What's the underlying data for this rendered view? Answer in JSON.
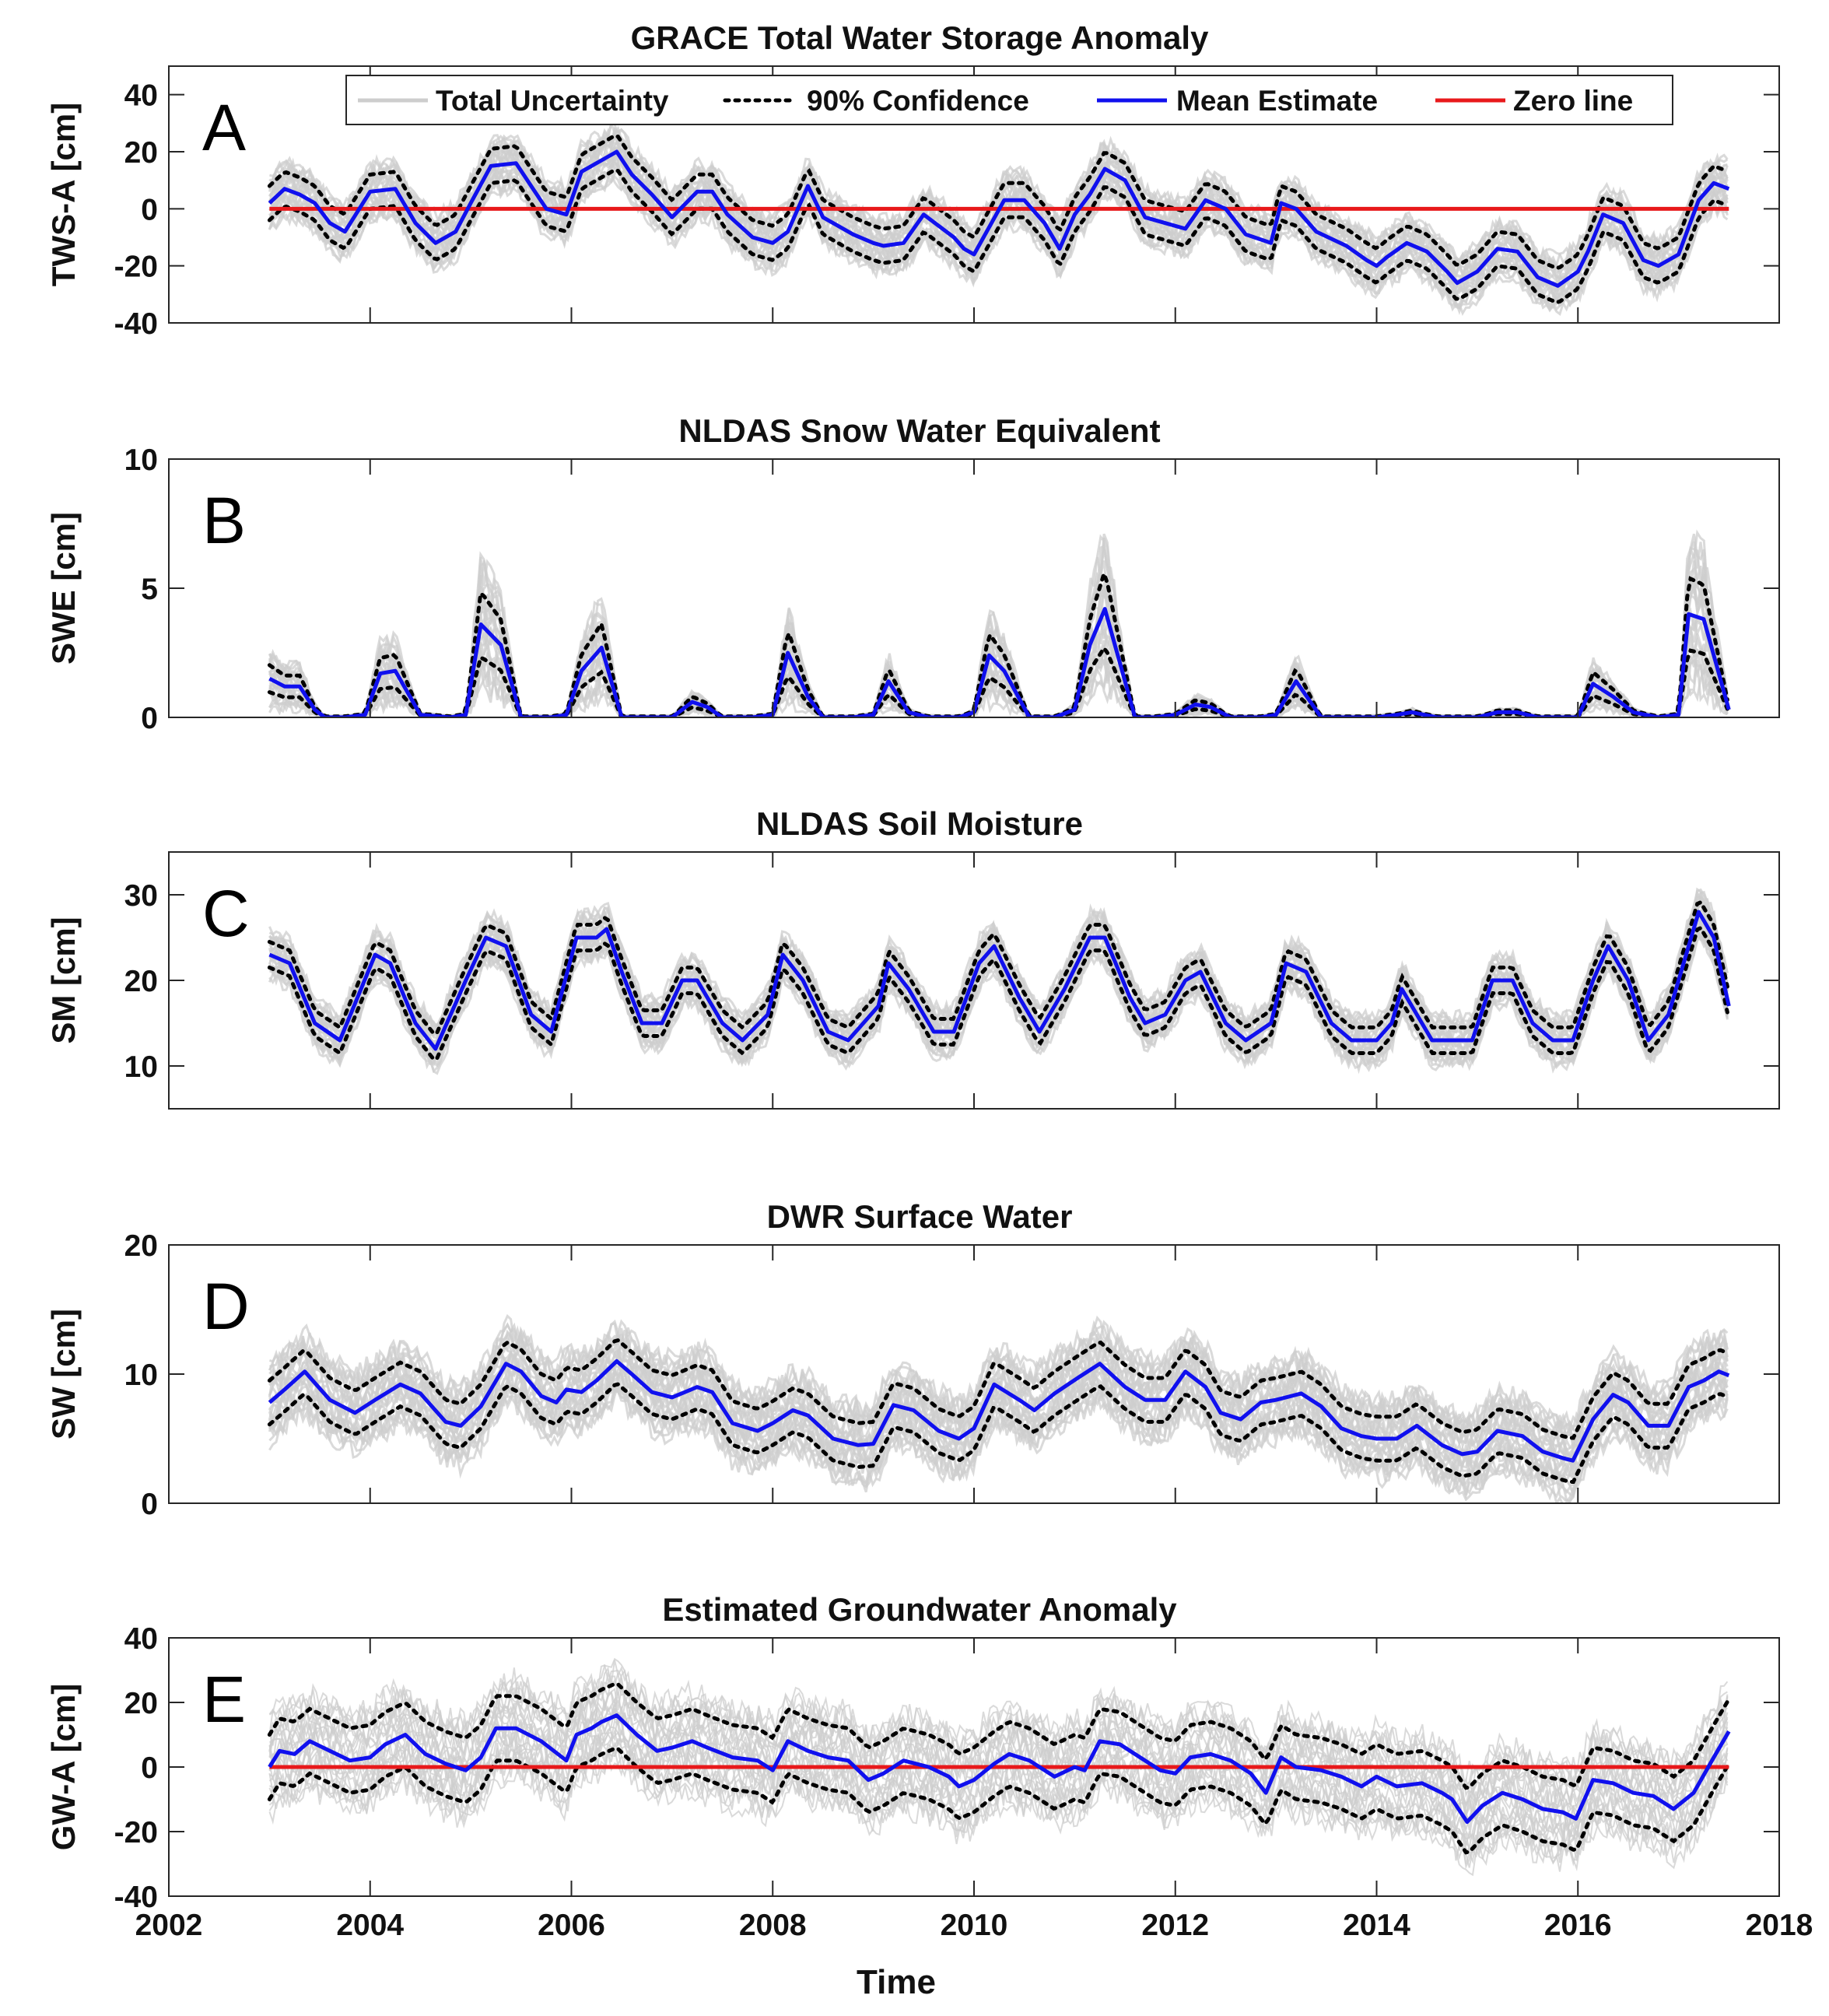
{
  "chart_data": [
    {
      "type": "line",
      "panel_letter": "A",
      "title": "GRACE Total Water Storage Anomaly",
      "xlabel": "",
      "ylabel": "TWS-A [cm]",
      "xlim": [
        2002,
        2018
      ],
      "ylim": [
        -40,
        50
      ],
      "yticks": [
        40,
        20,
        0,
        -20,
        -40
      ],
      "has_zero_line": true,
      "legend": {
        "location": "top",
        "entries": [
          "Total Uncertainty",
          "90% Confidence",
          "Mean Estimate",
          "Zero line"
        ]
      },
      "series": [
        {
          "name": "Mean Estimate",
          "x": [
            2003.0,
            2003.15,
            2003.3,
            2003.45,
            2003.6,
            2003.75,
            2004.0,
            2004.25,
            2004.45,
            2004.65,
            2004.85,
            2005.0,
            2005.2,
            2005.45,
            2005.6,
            2005.75,
            2005.95,
            2006.1,
            2006.3,
            2006.45,
            2006.6,
            2006.8,
            2007.0,
            2007.25,
            2007.4,
            2007.55,
            2007.8,
            2008.0,
            2008.15,
            2008.35,
            2008.5,
            2008.8,
            2009.0,
            2009.1,
            2009.3,
            2009.5,
            2009.8,
            2009.9,
            2010.0,
            2010.3,
            2010.5,
            2010.7,
            2010.85,
            2011.0,
            2011.15,
            2011.3,
            2011.5,
            2011.7,
            2011.9,
            2012.1,
            2012.3,
            2012.5,
            2012.7,
            2012.95,
            2013.05,
            2013.2,
            2013.4,
            2013.7,
            2013.9,
            2014.0,
            2014.1,
            2014.3,
            2014.5,
            2014.7,
            2014.8,
            2015.0,
            2015.2,
            2015.4,
            2015.6,
            2015.8,
            2016.0,
            2016.1,
            2016.25,
            2016.45,
            2016.65,
            2016.8,
            2017.0,
            2017.2,
            2017.35,
            2017.5
          ],
          "y": [
            2,
            7,
            5,
            2,
            -5,
            -8,
            6,
            7,
            -5,
            -12,
            -8,
            2,
            15,
            16,
            8,
            0,
            -2,
            13,
            17,
            20,
            12,
            5,
            -3,
            6,
            6,
            -2,
            -10,
            -12,
            -8,
            8,
            -3,
            -9,
            -12,
            -13,
            -12,
            -2,
            -10,
            -14,
            -16,
            3,
            3,
            -5,
            -14,
            -2,
            5,
            14,
            10,
            -3,
            -5,
            -7,
            3,
            0,
            -9,
            -12,
            2,
            0,
            -8,
            -13,
            -18,
            -20,
            -17,
            -12,
            -15,
            -22,
            -26,
            -22,
            -14,
            -15,
            -24,
            -27,
            -22,
            -15,
            -2,
            -5,
            -18,
            -20,
            -16,
            3,
            9,
            7
          ]
        },
        {
          "name": "Zero line",
          "x": [
            2003,
            2017.5
          ],
          "y": [
            0,
            0
          ]
        }
      ],
      "band_half_width": {
        "ci90": 6,
        "total": 10
      }
    },
    {
      "type": "line",
      "panel_letter": "B",
      "title": "NLDAS Snow Water Equivalent",
      "xlabel": "",
      "ylabel": "SWE [cm]",
      "xlim": [
        2002,
        2018
      ],
      "ylim": [
        0,
        10
      ],
      "yticks": [
        10,
        5,
        0
      ],
      "series": [
        {
          "name": "Mean Estimate",
          "x": [
            2003.0,
            2003.15,
            2003.3,
            2003.45,
            2003.55,
            2003.75,
            2003.95,
            2004.1,
            2004.25,
            2004.5,
            2004.8,
            2004.95,
            2005.1,
            2005.3,
            2005.5,
            2005.8,
            2005.95,
            2006.1,
            2006.3,
            2006.5,
            2006.8,
            2007.0,
            2007.2,
            2007.35,
            2007.5,
            2007.8,
            2008.0,
            2008.15,
            2008.35,
            2008.5,
            2008.8,
            2009.0,
            2009.15,
            2009.35,
            2009.55,
            2009.85,
            2010.0,
            2010.15,
            2010.3,
            2010.55,
            2010.8,
            2011.0,
            2011.15,
            2011.3,
            2011.6,
            2011.8,
            2012.0,
            2012.2,
            2012.35,
            2012.55,
            2012.85,
            2013.0,
            2013.2,
            2013.45,
            2013.8,
            2014.0,
            2014.2,
            2014.35,
            2014.6,
            2015.0,
            2015.2,
            2015.4,
            2015.6,
            2016.0,
            2016.15,
            2016.35,
            2016.55,
            2016.8,
            2017.0,
            2017.1,
            2017.25,
            2017.5
          ],
          "y": [
            1.5,
            1.2,
            1.2,
            0.3,
            0.0,
            0.0,
            0.1,
            1.7,
            1.8,
            0.1,
            0.0,
            0.1,
            3.6,
            2.8,
            0.0,
            0.0,
            0.1,
            1.8,
            2.7,
            0.0,
            0.0,
            0.0,
            0.6,
            0.4,
            0.0,
            0.0,
            0.1,
            2.5,
            0.8,
            0.0,
            0.0,
            0.1,
            1.4,
            0.2,
            0.0,
            0.0,
            0.2,
            2.4,
            1.8,
            0.0,
            0.0,
            0.3,
            2.8,
            4.2,
            0.0,
            0.0,
            0.1,
            0.5,
            0.4,
            0.0,
            0.0,
            0.1,
            1.4,
            0.0,
            0.0,
            0.0,
            0.1,
            0.2,
            0.0,
            0.0,
            0.2,
            0.2,
            0.0,
            0.0,
            1.3,
            0.8,
            0.2,
            0.0,
            0.1,
            4.0,
            3.8,
            0.3
          ]
        }
      ],
      "band_relative": {
        "ci90": 0.35,
        "total": 0.75
      }
    },
    {
      "type": "line",
      "panel_letter": "C",
      "title": "NLDAS Soil Moisture",
      "xlabel": "",
      "ylabel": "SM [cm]",
      "xlim": [
        2002,
        2018
      ],
      "ylim": [
        5,
        35
      ],
      "yticks": [
        30,
        20,
        10
      ],
      "series": [
        {
          "name": "Mean Estimate",
          "x": [
            2003.0,
            2003.2,
            2003.45,
            2003.7,
            2004.05,
            2004.2,
            2004.45,
            2004.65,
            2004.95,
            2005.15,
            2005.35,
            2005.6,
            2005.8,
            2006.05,
            2006.25,
            2006.35,
            2006.5,
            2006.7,
            2006.9,
            2007.1,
            2007.25,
            2007.5,
            2007.7,
            2007.95,
            2008.1,
            2008.3,
            2008.55,
            2008.75,
            2009.05,
            2009.15,
            2009.35,
            2009.6,
            2009.8,
            2010.05,
            2010.2,
            2010.45,
            2010.65,
            2010.9,
            2011.15,
            2011.3,
            2011.55,
            2011.7,
            2011.9,
            2012.1,
            2012.25,
            2012.5,
            2012.7,
            2012.95,
            2013.1,
            2013.3,
            2013.55,
            2013.75,
            2014.0,
            2014.15,
            2014.25,
            2014.55,
            2014.75,
            2014.95,
            2015.15,
            2015.35,
            2015.55,
            2015.75,
            2015.95,
            2016.15,
            2016.3,
            2016.5,
            2016.7,
            2016.9,
            2017.05,
            2017.2,
            2017.35,
            2017.5
          ],
          "y": [
            23,
            22,
            15,
            13,
            23,
            22,
            15,
            12,
            20,
            25,
            24,
            16,
            14,
            25,
            25,
            26,
            21,
            15,
            15,
            20,
            20,
            15,
            13,
            16,
            23,
            20,
            14,
            13,
            17,
            22,
            19,
            14,
            14,
            22,
            24,
            18,
            14,
            19,
            25,
            25,
            18,
            15,
            16,
            20,
            21,
            15,
            13,
            15,
            22,
            21,
            15,
            13,
            13,
            15,
            19,
            13,
            13,
            13,
            20,
            20,
            15,
            13,
            13,
            20,
            24,
            20,
            13,
            16,
            22,
            28,
            25,
            17
          ]
        }
      ],
      "band_half_width": {
        "ci90": 1.5,
        "total": 3
      }
    },
    {
      "type": "line",
      "panel_letter": "D",
      "title": "DWR Surface Water",
      "xlabel": "",
      "ylabel": "SW [cm]",
      "xlim": [
        2002,
        2018
      ],
      "ylim": [
        0,
        20
      ],
      "yticks": [
        20,
        10,
        0
      ],
      "series": [
        {
          "name": "Mean Estimate",
          "x": [
            2003.0,
            2003.15,
            2003.35,
            2003.6,
            2003.85,
            2004.05,
            2004.3,
            2004.5,
            2004.75,
            2004.9,
            2005.1,
            2005.35,
            2005.5,
            2005.7,
            2005.85,
            2005.95,
            2006.1,
            2006.25,
            2006.45,
            2006.6,
            2006.8,
            2007.0,
            2007.25,
            2007.4,
            2007.6,
            2007.85,
            2008.0,
            2008.2,
            2008.35,
            2008.6,
            2008.85,
            2009.0,
            2009.2,
            2009.4,
            2009.65,
            2009.85,
            2010.0,
            2010.2,
            2010.45,
            2010.6,
            2010.8,
            2011.05,
            2011.25,
            2011.5,
            2011.7,
            2011.9,
            2012.1,
            2012.3,
            2012.45,
            2012.65,
            2012.85,
            2013.0,
            2013.25,
            2013.45,
            2013.65,
            2013.85,
            2014.0,
            2014.2,
            2014.4,
            2014.65,
            2014.85,
            2015.0,
            2015.2,
            2015.45,
            2015.65,
            2015.85,
            2015.95,
            2016.15,
            2016.35,
            2016.5,
            2016.7,
            2016.9,
            2017.1,
            2017.25,
            2017.4,
            2017.5
          ],
          "y": [
            7.8,
            8.8,
            10.2,
            8.0,
            7.0,
            8.0,
            9.2,
            8.5,
            6.3,
            6.0,
            7.5,
            10.8,
            10.2,
            8.3,
            7.8,
            8.8,
            8.6,
            9.5,
            11.0,
            10.0,
            8.6,
            8.2,
            9.0,
            8.6,
            6.2,
            5.6,
            6.2,
            7.2,
            6.8,
            5.0,
            4.5,
            4.6,
            7.6,
            7.2,
            5.6,
            5.0,
            5.8,
            9.2,
            8.0,
            7.2,
            8.5,
            9.8,
            10.8,
            9.0,
            8.0,
            8.0,
            10.2,
            9.0,
            7.0,
            6.5,
            7.8,
            8.0,
            8.5,
            7.5,
            5.8,
            5.2,
            5.0,
            5.0,
            6.0,
            4.5,
            3.8,
            4.0,
            5.6,
            5.2,
            4.0,
            3.5,
            3.3,
            6.5,
            8.4,
            7.8,
            6.0,
            6.0,
            9.0,
            9.5,
            10.2,
            9.9
          ]
        }
      ],
      "band_half_width": {
        "ci90": 1.7,
        "total": 3.2
      }
    },
    {
      "type": "line",
      "panel_letter": "E",
      "title": "Estimated Groundwater Anomaly",
      "xlabel": "Time",
      "ylabel": "GW-A [cm]",
      "xlim": [
        2002,
        2018
      ],
      "xticks": [
        2002,
        2004,
        2006,
        2008,
        2010,
        2012,
        2014,
        2016,
        2018
      ],
      "ylim": [
        -40,
        40
      ],
      "yticks": [
        40,
        20,
        0,
        -20,
        -40
      ],
      "has_zero_line": true,
      "series": [
        {
          "name": "Mean Estimate",
          "x": [
            2003.0,
            2003.1,
            2003.25,
            2003.4,
            2003.6,
            2003.8,
            2004.0,
            2004.15,
            2004.35,
            2004.55,
            2004.75,
            2004.95,
            2005.1,
            2005.25,
            2005.45,
            2005.7,
            2005.95,
            2006.05,
            2006.2,
            2006.3,
            2006.45,
            2006.65,
            2006.85,
            2007.0,
            2007.2,
            2007.35,
            2007.6,
            2007.85,
            2008.0,
            2008.15,
            2008.35,
            2008.55,
            2008.75,
            2008.95,
            2009.1,
            2009.3,
            2009.55,
            2009.75,
            2009.85,
            2010.0,
            2010.2,
            2010.35,
            2010.55,
            2010.8,
            2011.0,
            2011.1,
            2011.25,
            2011.45,
            2011.65,
            2011.85,
            2012.0,
            2012.15,
            2012.35,
            2012.55,
            2012.75,
            2012.9,
            2013.05,
            2013.2,
            2013.45,
            2013.65,
            2013.85,
            2014.0,
            2014.2,
            2014.45,
            2014.65,
            2014.75,
            2014.9,
            2015.05,
            2015.25,
            2015.45,
            2015.65,
            2015.85,
            2015.98,
            2016.15,
            2016.35,
            2016.55,
            2016.75,
            2016.95,
            2017.15,
            2017.35,
            2017.5
          ],
          "y": [
            0,
            5,
            4,
            8,
            5,
            2,
            3,
            7,
            10,
            4,
            1,
            -1,
            3,
            12,
            12,
            8,
            2,
            10,
            12,
            14,
            16,
            10,
            5,
            6,
            8,
            6,
            3,
            2,
            -1,
            8,
            5,
            3,
            2,
            -4,
            -2,
            2,
            0,
            -3,
            -6,
            -4,
            1,
            4,
            2,
            -3,
            0,
            -1,
            8,
            7,
            3,
            -1,
            -2,
            3,
            4,
            2,
            -2,
            -8,
            3,
            0,
            -1,
            -3,
            -6,
            -3,
            -6,
            -5,
            -8,
            -10,
            -17,
            -12,
            -8,
            -10,
            -13,
            -14,
            -16,
            -4,
            -5,
            -8,
            -9,
            -13,
            -8,
            3,
            11
          ]
        },
        {
          "name": "Zero line",
          "x": [
            2003,
            2017.5
          ],
          "y": [
            0,
            0
          ]
        }
      ],
      "band_half_width": {
        "ci90": 10,
        "total": 16
      }
    }
  ],
  "colors": {
    "mean": "#1010ee",
    "zero_line": "#e8191b",
    "uncertainty": "#cdcdcd",
    "confidence": "#000000",
    "axes": "#262626"
  },
  "icons": {
    "uncertainty_sample": "gray-line-icon",
    "confidence_sample": "dotted-line-icon",
    "mean_sample": "blue-line-icon",
    "zero_sample": "red-line-icon"
  }
}
